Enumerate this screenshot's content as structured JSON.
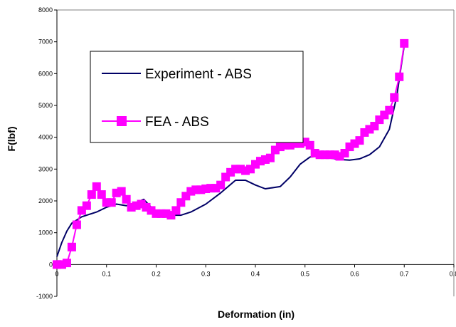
{
  "chart_data": {
    "type": "line",
    "title": "",
    "xlabel": "Deformation (in)",
    "ylabel": "F(lbf)",
    "xlim": [
      0,
      0.8
    ],
    "ylim": [
      -1000,
      8000
    ],
    "x_ticks": [
      0,
      0.1,
      0.2,
      0.3,
      0.4,
      0.5,
      0.6,
      0.7,
      0.8
    ],
    "x_tick_labels": [
      "0",
      "0.1",
      "0.2",
      "0.3",
      "0.4",
      "0.5",
      "0.6",
      "0.7",
      "0.8"
    ],
    "y_ticks": [
      -1000,
      0,
      1000,
      2000,
      3000,
      4000,
      5000,
      6000,
      7000,
      8000
    ],
    "y_tick_labels": [
      "-1000",
      "0",
      "1000",
      "2000",
      "3000",
      "4000",
      "5000",
      "6000",
      "7000",
      "8000"
    ],
    "grid": false,
    "legend_position": "upper-left",
    "series": [
      {
        "name": "Experiment - ABS",
        "color": "#000066",
        "marker": "none",
        "x": [
          0,
          0.01,
          0.02,
          0.03,
          0.05,
          0.08,
          0.1,
          0.12,
          0.14,
          0.16,
          0.175,
          0.19,
          0.2,
          0.22,
          0.25,
          0.27,
          0.3,
          0.33,
          0.36,
          0.38,
          0.4,
          0.42,
          0.45,
          0.47,
          0.49,
          0.51,
          0.53,
          0.55,
          0.57,
          0.59,
          0.61,
          0.63,
          0.65,
          0.67,
          0.685,
          0.7
        ],
        "values": [
          250,
          700,
          1050,
          1300,
          1500,
          1650,
          1800,
          1900,
          1850,
          1950,
          2050,
          1800,
          1600,
          1550,
          1550,
          1650,
          1900,
          2250,
          2650,
          2650,
          2500,
          2380,
          2450,
          2750,
          3150,
          3380,
          3400,
          3350,
          3300,
          3280,
          3320,
          3450,
          3700,
          4250,
          5300,
          6900
        ]
      },
      {
        "name": "FEA - ABS",
        "color": "#ff00ff",
        "marker": "square",
        "x": [
          0,
          0.01,
          0.02,
          0.03,
          0.04,
          0.05,
          0.06,
          0.07,
          0.08,
          0.09,
          0.1,
          0.11,
          0.12,
          0.13,
          0.14,
          0.15,
          0.16,
          0.17,
          0.18,
          0.19,
          0.2,
          0.21,
          0.22,
          0.23,
          0.24,
          0.25,
          0.26,
          0.27,
          0.28,
          0.29,
          0.3,
          0.31,
          0.32,
          0.33,
          0.34,
          0.35,
          0.36,
          0.37,
          0.38,
          0.39,
          0.4,
          0.41,
          0.42,
          0.43,
          0.44,
          0.45,
          0.46,
          0.47,
          0.48,
          0.49,
          0.5,
          0.51,
          0.52,
          0.53,
          0.54,
          0.55,
          0.56,
          0.57,
          0.58,
          0.59,
          0.6,
          0.61,
          0.62,
          0.63,
          0.64,
          0.65,
          0.66,
          0.67,
          0.68,
          0.69,
          0.7
        ],
        "values": [
          0,
          0,
          50,
          550,
          1250,
          1700,
          1850,
          2200,
          2450,
          2200,
          1950,
          1950,
          2250,
          2300,
          2050,
          1800,
          1850,
          1900,
          1800,
          1700,
          1600,
          1600,
          1600,
          1550,
          1700,
          1950,
          2150,
          2300,
          2350,
          2350,
          2380,
          2400,
          2400,
          2500,
          2750,
          2900,
          3000,
          3000,
          2950,
          3000,
          3150,
          3250,
          3300,
          3350,
          3600,
          3700,
          3750,
          3750,
          3800,
          3800,
          3850,
          3750,
          3500,
          3450,
          3450,
          3450,
          3450,
          3400,
          3500,
          3700,
          3800,
          3900,
          4150,
          4250,
          4350,
          4550,
          4700,
          4850,
          5250,
          5900,
          6950
        ]
      }
    ]
  }
}
